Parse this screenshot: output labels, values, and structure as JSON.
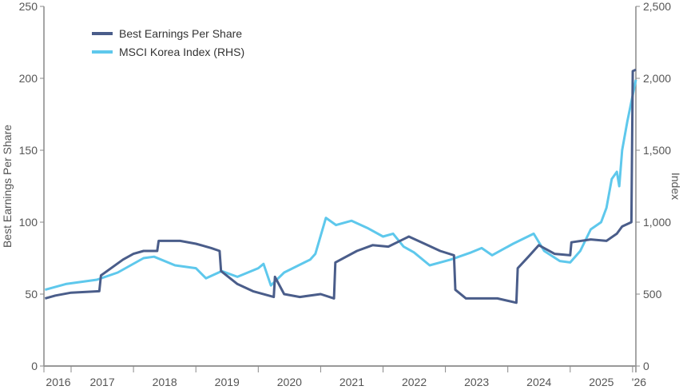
{
  "chart_data": {
    "type": "line",
    "title": "",
    "xlabel": "",
    "ylabel": "Best Earnings Per Share",
    "ylabel_right": "Index",
    "ylim": [
      0,
      250
    ],
    "ylim_right": [
      0,
      2500
    ],
    "yticks": [
      "0",
      "50",
      "100",
      "150",
      "200",
      "250"
    ],
    "yticks_right": [
      "0",
      "500",
      "1,000",
      "1,500",
      "2,000",
      "2,500"
    ],
    "xtick_labels": [
      "2016",
      "2017",
      "2018",
      "2019",
      "2020",
      "2021",
      "2022",
      "2023",
      "2024",
      "2025",
      "'26"
    ],
    "grid": false,
    "legend_position": "top-left",
    "series": [
      {
        "name": "Best Earnings Per Share",
        "axis": "left",
        "color": "#4a5d8a",
        "points": [
          [
            "2016-08-01",
            47
          ],
          [
            "2016-10-01",
            49
          ],
          [
            "2017-01-01",
            51
          ],
          [
            "2017-06-15",
            52
          ],
          [
            "2017-06-25",
            63
          ],
          [
            "2017-11-01",
            74
          ],
          [
            "2018-01-01",
            78
          ],
          [
            "2018-03-01",
            80
          ],
          [
            "2018-05-20",
            80
          ],
          [
            "2018-05-28",
            87
          ],
          [
            "2018-10-01",
            87
          ],
          [
            "2019-01-01",
            85
          ],
          [
            "2019-04-01",
            82
          ],
          [
            "2019-05-20",
            80
          ],
          [
            "2019-05-28",
            66
          ],
          [
            "2019-09-01",
            57
          ],
          [
            "2019-12-01",
            52
          ],
          [
            "2020-04-01",
            48
          ],
          [
            "2020-04-08",
            62
          ],
          [
            "2020-06-01",
            50
          ],
          [
            "2020-09-01",
            48
          ],
          [
            "2021-01-01",
            50
          ],
          [
            "2021-03-20",
            47
          ],
          [
            "2021-03-28",
            72
          ],
          [
            "2021-08-01",
            80
          ],
          [
            "2021-11-01",
            84
          ],
          [
            "2022-02-01",
            83
          ],
          [
            "2022-06-01",
            90
          ],
          [
            "2022-09-01",
            85
          ],
          [
            "2022-12-01",
            80
          ],
          [
            "2023-02-20",
            77
          ],
          [
            "2023-02-28",
            53
          ],
          [
            "2023-05-01",
            47
          ],
          [
            "2023-11-01",
            47
          ],
          [
            "2024-02-20",
            44
          ],
          [
            "2024-02-28",
            68
          ],
          [
            "2024-05-01",
            76
          ],
          [
            "2024-07-01",
            84
          ],
          [
            "2024-10-01",
            78
          ],
          [
            "2025-01-01",
            77
          ],
          [
            "2025-01-08",
            86
          ],
          [
            "2025-05-01",
            88
          ],
          [
            "2025-08-01",
            87
          ],
          [
            "2025-10-01",
            92
          ],
          [
            "2025-11-01",
            97
          ],
          [
            "2025-12-25",
            100
          ],
          [
            "2026-01-02",
            205
          ],
          [
            "2026-01-20",
            206
          ]
        ]
      },
      {
        "name": "MSCI Korea Index (RHS)",
        "axis": "right",
        "color": "#5ec8ec",
        "points": [
          [
            "2016-08-01",
            530
          ],
          [
            "2016-12-01",
            570
          ],
          [
            "2017-06-01",
            600
          ],
          [
            "2017-10-01",
            650
          ],
          [
            "2018-03-01",
            750
          ],
          [
            "2018-05-01",
            760
          ],
          [
            "2018-09-01",
            700
          ],
          [
            "2019-01-01",
            680
          ],
          [
            "2019-03-01",
            610
          ],
          [
            "2019-06-01",
            660
          ],
          [
            "2019-09-01",
            620
          ],
          [
            "2020-01-01",
            680
          ],
          [
            "2020-02-01",
            710
          ],
          [
            "2020-03-15",
            560
          ],
          [
            "2020-06-01",
            650
          ],
          [
            "2020-11-01",
            740
          ],
          [
            "2020-12-01",
            780
          ],
          [
            "2021-02-01",
            1030
          ],
          [
            "2021-04-01",
            980
          ],
          [
            "2021-07-01",
            1010
          ],
          [
            "2021-10-01",
            960
          ],
          [
            "2022-01-01",
            900
          ],
          [
            "2022-03-01",
            920
          ],
          [
            "2022-05-01",
            830
          ],
          [
            "2022-07-01",
            790
          ],
          [
            "2022-10-01",
            700
          ],
          [
            "2022-12-01",
            720
          ],
          [
            "2023-02-01",
            740
          ],
          [
            "2023-06-01",
            790
          ],
          [
            "2023-08-01",
            820
          ],
          [
            "2023-10-01",
            770
          ],
          [
            "2023-12-01",
            810
          ],
          [
            "2024-02-01",
            850
          ],
          [
            "2024-06-01",
            920
          ],
          [
            "2024-08-01",
            800
          ],
          [
            "2024-11-01",
            730
          ],
          [
            "2025-01-01",
            720
          ],
          [
            "2025-03-01",
            800
          ],
          [
            "2025-05-01",
            950
          ],
          [
            "2025-07-01",
            1000
          ],
          [
            "2025-08-01",
            1100
          ],
          [
            "2025-09-01",
            1300
          ],
          [
            "2025-10-01",
            1350
          ],
          [
            "2025-10-15",
            1250
          ],
          [
            "2025-11-01",
            1500
          ],
          [
            "2025-12-01",
            1700
          ],
          [
            "2026-01-20",
            1990
          ]
        ]
      }
    ]
  }
}
